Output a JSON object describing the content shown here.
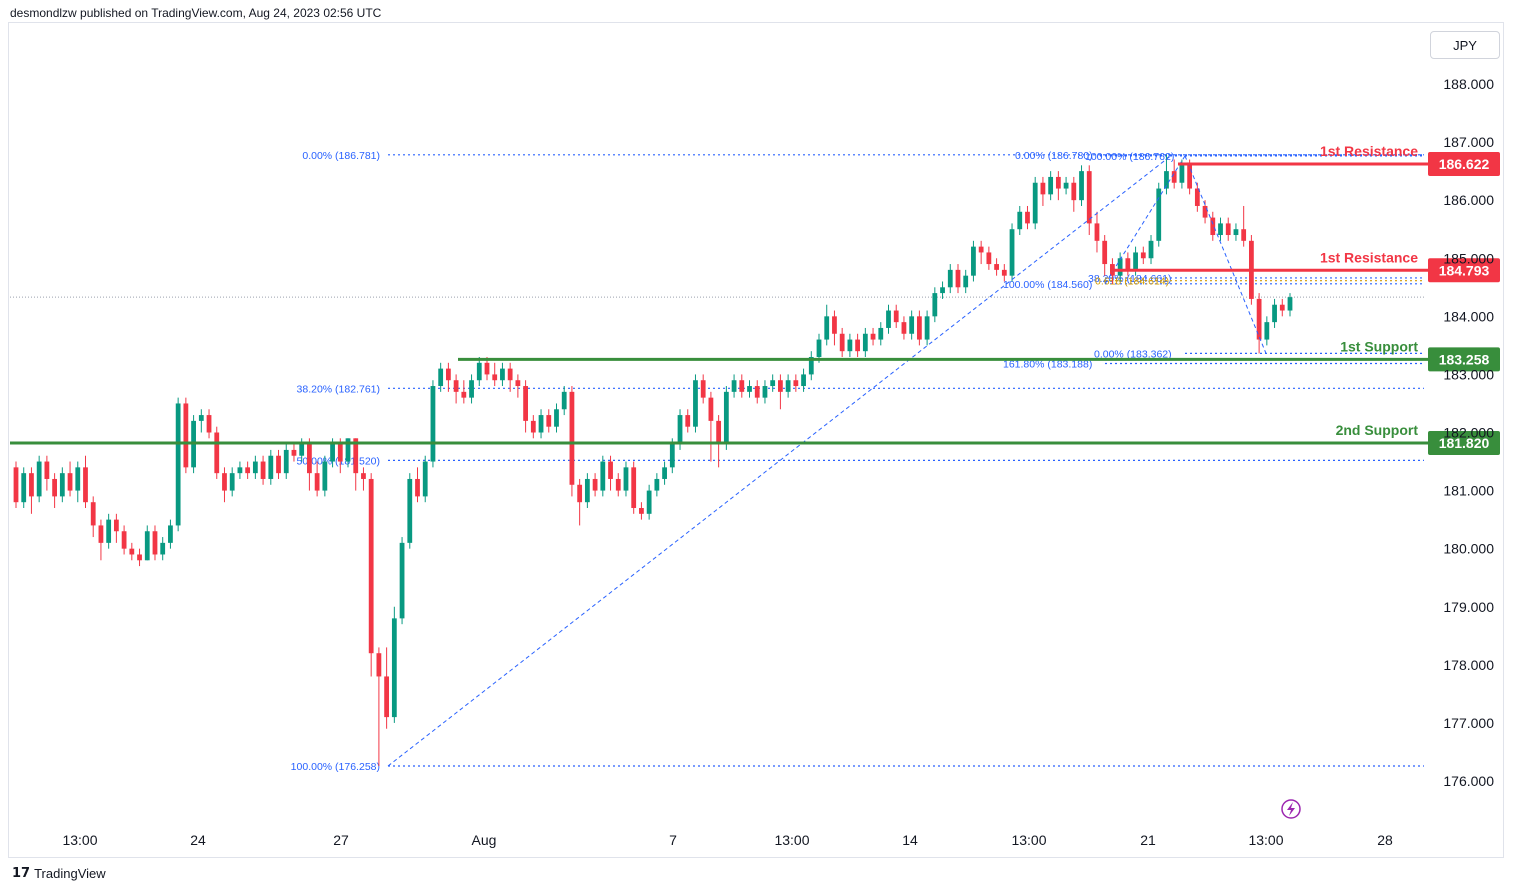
{
  "header": {
    "publisher_line": "desmondlzw published on TradingView.com, Aug 24, 2023 02:56 UTC"
  },
  "currency": "JPY",
  "footer": {
    "brand": "TradingView"
  },
  "colors": {
    "up": "#089981",
    "down": "#f23645",
    "fib": "#2962ff",
    "resistance": "#f23645",
    "support": "#388e3c",
    "gold": "#d49c00"
  },
  "chart_data": {
    "type": "candlestick",
    "y_axis": {
      "ticks": [
        "188.000",
        "187.000",
        "186.000",
        "185.000",
        "184.000",
        "183.000",
        "182.000",
        "181.000",
        "180.000",
        "179.000",
        "178.000",
        "177.000",
        "176.000"
      ]
    },
    "x_axis": {
      "ticks": [
        "13:00",
        "24",
        "27",
        "Aug",
        "7",
        "13:00",
        "14",
        "13:00",
        "21",
        "13:00",
        "28"
      ]
    },
    "levels": [
      {
        "name": "1st Resistance",
        "value": "186.622",
        "kind": "resistance"
      },
      {
        "name": "1st Resistance",
        "value": "184.793",
        "kind": "resistance"
      },
      {
        "name": "1st Support",
        "value": "183.258",
        "kind": "support"
      },
      {
        "name": "2nd Support",
        "value": "181.820",
        "kind": "support"
      }
    ],
    "fib_labels": [
      {
        "text": "0.00% (186.781)",
        "value": 186.781
      },
      {
        "text": "38.20% (182.761)",
        "value": 182.761
      },
      {
        "text": "50.00% (181.520)",
        "value": 181.52
      },
      {
        "text": "100.00% (176.258)",
        "value": 176.258
      },
      {
        "text": "0.00% (186.780)",
        "value": 186.78
      },
      {
        "text": "100.00% (186.762)",
        "value": 186.762
      },
      {
        "text": "38.20% (184.661)",
        "value": 184.661
      },
      {
        "text": "100.00% (184.560)",
        "value": 184.56
      },
      {
        "text": "0.618 (184.614)",
        "value": 184.614
      },
      {
        "text": "0.00% (183.362)",
        "value": 183.362
      },
      {
        "text": "161.80% (183.188)",
        "value": 183.188
      }
    ],
    "current_price": 184.33,
    "candles": [
      [
        181.4,
        180.8,
        181.5,
        180.7
      ],
      [
        180.8,
        181.3,
        181.4,
        180.7
      ],
      [
        181.3,
        180.9,
        181.4,
        180.6
      ],
      [
        180.9,
        181.5,
        181.6,
        180.8
      ],
      [
        181.5,
        181.2,
        181.6,
        181.0
      ],
      [
        181.2,
        180.9,
        181.3,
        180.7
      ],
      [
        180.9,
        181.3,
        181.4,
        180.8
      ],
      [
        181.3,
        181.0,
        181.5,
        180.9
      ],
      [
        181.0,
        181.4,
        181.5,
        180.8
      ],
      [
        181.4,
        180.8,
        181.6,
        180.7
      ],
      [
        180.8,
        180.4,
        180.9,
        180.2
      ],
      [
        180.4,
        180.1,
        180.5,
        179.8
      ],
      [
        180.1,
        180.5,
        180.6,
        180.0
      ],
      [
        180.5,
        180.3,
        180.6,
        180.1
      ],
      [
        180.3,
        180.0,
        180.4,
        179.9
      ],
      [
        180.0,
        179.9,
        180.1,
        179.8
      ],
      [
        179.9,
        179.8,
        180.0,
        179.7
      ],
      [
        179.8,
        180.3,
        180.4,
        179.8
      ],
      [
        180.3,
        179.9,
        180.4,
        179.8
      ],
      [
        179.9,
        180.1,
        180.2,
        179.8
      ],
      [
        180.1,
        180.4,
        180.5,
        180.0
      ],
      [
        180.4,
        182.5,
        182.6,
        180.3
      ],
      [
        182.5,
        181.4,
        182.6,
        181.3
      ],
      [
        181.4,
        182.2,
        182.3,
        181.3
      ],
      [
        182.2,
        182.3,
        182.4,
        182.0
      ],
      [
        182.3,
        182.0,
        182.4,
        181.9
      ],
      [
        182.0,
        181.3,
        182.1,
        181.2
      ],
      [
        181.3,
        181.0,
        181.4,
        180.8
      ],
      [
        181.0,
        181.3,
        181.4,
        180.9
      ],
      [
        181.3,
        181.4,
        181.5,
        181.2
      ],
      [
        181.4,
        181.3,
        181.5,
        181.2
      ],
      [
        181.3,
        181.5,
        181.6,
        181.2
      ],
      [
        181.5,
        181.2,
        181.6,
        181.1
      ],
      [
        181.2,
        181.6,
        181.7,
        181.1
      ],
      [
        181.6,
        181.3,
        181.7,
        181.2
      ],
      [
        181.3,
        181.7,
        181.8,
        181.2
      ],
      [
        181.7,
        181.6,
        181.8,
        181.5
      ],
      [
        181.6,
        181.8,
        181.9,
        181.5
      ],
      [
        181.8,
        181.3,
        181.9,
        181.0
      ],
      [
        181.3,
        181.0,
        181.5,
        180.9
      ],
      [
        181.0,
        181.5,
        181.6,
        180.9
      ],
      [
        181.5,
        181.8,
        181.9,
        181.4
      ],
      [
        181.8,
        181.5,
        181.9,
        181.3
      ],
      [
        181.5,
        181.9,
        181.9,
        181.4
      ],
      [
        181.9,
        181.3,
        181.9,
        181.0
      ],
      [
        181.3,
        181.2,
        181.4,
        181.0
      ],
      [
        181.2,
        178.2,
        181.3,
        177.8
      ],
      [
        178.2,
        177.8,
        178.3,
        176.258
      ],
      [
        177.8,
        177.1,
        178.3,
        176.9
      ],
      [
        177.1,
        178.8,
        179.0,
        177.0
      ],
      [
        178.8,
        180.1,
        180.2,
        178.7
      ],
      [
        180.1,
        181.2,
        181.3,
        180.0
      ],
      [
        181.2,
        180.9,
        181.4,
        180.8
      ],
      [
        180.9,
        181.5,
        181.6,
        180.8
      ],
      [
        181.5,
        182.8,
        182.9,
        181.4
      ],
      [
        182.8,
        183.1,
        183.2,
        182.7
      ],
      [
        183.1,
        182.9,
        183.2,
        182.7
      ],
      [
        182.9,
        182.7,
        183.0,
        182.5
      ],
      [
        182.7,
        182.6,
        182.9,
        182.5
      ],
      [
        182.6,
        182.9,
        183.0,
        182.5
      ],
      [
        182.9,
        183.2,
        183.3,
        182.8
      ],
      [
        183.2,
        183.0,
        183.3,
        182.9
      ],
      [
        183.0,
        182.9,
        183.2,
        182.8
      ],
      [
        182.9,
        183.1,
        183.2,
        182.8
      ],
      [
        183.1,
        182.9,
        183.2,
        182.7
      ],
      [
        182.9,
        182.8,
        183.0,
        182.6
      ],
      [
        182.8,
        182.2,
        182.9,
        182.0
      ],
      [
        182.2,
        182.0,
        182.3,
        181.9
      ],
      [
        182.0,
        182.3,
        182.4,
        181.9
      ],
      [
        182.3,
        182.1,
        182.4,
        182.0
      ],
      [
        182.1,
        182.4,
        182.5,
        182.0
      ],
      [
        182.4,
        182.7,
        182.8,
        182.3
      ],
      [
        182.7,
        181.1,
        182.8,
        180.9
      ],
      [
        181.1,
        180.8,
        181.2,
        180.4
      ],
      [
        180.8,
        181.2,
        181.3,
        180.7
      ],
      [
        181.2,
        181.0,
        181.3,
        180.9
      ],
      [
        181.0,
        181.5,
        181.6,
        180.9
      ],
      [
        181.5,
        181.2,
        181.6,
        181.0
      ],
      [
        181.2,
        181.0,
        181.3,
        180.9
      ],
      [
        181.0,
        181.4,
        181.5,
        180.9
      ],
      [
        181.4,
        180.7,
        181.5,
        180.6
      ],
      [
        180.7,
        180.6,
        180.8,
        180.5
      ],
      [
        180.6,
        181.0,
        181.1,
        180.5
      ],
      [
        181.0,
        181.2,
        181.3,
        180.9
      ],
      [
        181.2,
        181.4,
        181.5,
        181.1
      ],
      [
        181.4,
        181.8,
        181.9,
        181.3
      ],
      [
        181.8,
        182.3,
        182.4,
        181.7
      ],
      [
        182.3,
        182.1,
        182.4,
        182.0
      ],
      [
        182.1,
        182.9,
        183.0,
        182.0
      ],
      [
        182.9,
        182.6,
        183.0,
        182.5
      ],
      [
        182.6,
        182.2,
        182.7,
        181.5
      ],
      [
        182.2,
        181.8,
        182.3,
        181.4
      ],
      [
        181.8,
        182.7,
        182.8,
        181.7
      ],
      [
        182.7,
        182.9,
        183.0,
        182.6
      ],
      [
        182.9,
        182.7,
        183.0,
        182.6
      ],
      [
        182.7,
        182.8,
        182.9,
        182.6
      ],
      [
        182.8,
        182.6,
        182.9,
        182.5
      ],
      [
        182.6,
        182.8,
        182.9,
        182.5
      ],
      [
        182.8,
        182.9,
        183.0,
        182.7
      ],
      [
        182.9,
        182.7,
        183.0,
        182.4
      ],
      [
        182.7,
        182.9,
        183.0,
        182.6
      ],
      [
        182.9,
        182.8,
        183.0,
        182.7
      ],
      [
        182.8,
        183.0,
        183.1,
        182.7
      ],
      [
        183.0,
        183.3,
        183.4,
        182.9
      ],
      [
        183.3,
        183.6,
        183.7,
        183.2
      ],
      [
        183.6,
        184.0,
        184.2,
        183.5
      ],
      [
        184.0,
        183.7,
        184.1,
        183.5
      ],
      [
        183.7,
        183.4,
        183.8,
        183.3
      ],
      [
        183.4,
        183.6,
        183.7,
        183.3
      ],
      [
        183.6,
        183.4,
        183.7,
        183.3
      ],
      [
        183.4,
        183.7,
        183.8,
        183.3
      ],
      [
        183.7,
        183.6,
        183.8,
        183.5
      ],
      [
        183.6,
        183.8,
        183.9,
        183.5
      ],
      [
        183.8,
        184.1,
        184.2,
        183.7
      ],
      [
        184.1,
        183.9,
        184.2,
        183.8
      ],
      [
        183.9,
        183.7,
        184.0,
        183.6
      ],
      [
        183.7,
        184.0,
        184.1,
        183.6
      ],
      [
        184.0,
        183.6,
        184.1,
        183.5
      ],
      [
        183.6,
        184.0,
        184.1,
        183.5
      ],
      [
        184.0,
        184.4,
        184.5,
        183.9
      ],
      [
        184.4,
        184.5,
        184.6,
        184.3
      ],
      [
        184.5,
        184.8,
        184.9,
        184.4
      ],
      [
        184.8,
        184.5,
        184.9,
        184.4
      ],
      [
        184.5,
        184.7,
        184.8,
        184.4
      ],
      [
        184.7,
        185.2,
        185.3,
        184.6
      ],
      [
        185.2,
        185.1,
        185.3,
        184.9
      ],
      [
        185.1,
        184.9,
        185.2,
        184.8
      ],
      [
        184.9,
        184.8,
        185.0,
        184.7
      ],
      [
        184.8,
        184.7,
        184.9,
        184.6
      ],
      [
        184.7,
        185.5,
        185.6,
        184.6
      ],
      [
        185.5,
        185.8,
        185.9,
        185.4
      ],
      [
        185.8,
        185.6,
        185.9,
        185.5
      ],
      [
        185.6,
        186.3,
        186.4,
        185.5
      ],
      [
        186.3,
        186.1,
        186.4,
        185.9
      ],
      [
        186.1,
        186.4,
        186.5,
        186.0
      ],
      [
        186.4,
        186.2,
        186.5,
        186.0
      ],
      [
        186.2,
        186.3,
        186.4,
        186.1
      ],
      [
        186.3,
        186.0,
        186.4,
        185.8
      ],
      [
        186.0,
        186.5,
        186.6,
        185.9
      ],
      [
        186.5,
        185.6,
        186.6,
        185.4
      ],
      [
        185.6,
        185.3,
        185.8,
        185.1
      ],
      [
        185.3,
        184.9,
        185.4,
        184.7
      ],
      [
        184.9,
        184.7,
        185.0,
        184.56
      ],
      [
        184.7,
        185.0,
        185.1,
        184.6
      ],
      [
        185.0,
        184.8,
        185.1,
        184.7
      ],
      [
        184.8,
        185.1,
        185.2,
        184.7
      ],
      [
        185.1,
        185.0,
        185.2,
        184.9
      ],
      [
        185.0,
        185.3,
        185.4,
        184.9
      ],
      [
        185.3,
        186.2,
        186.3,
        185.2
      ],
      [
        186.2,
        186.5,
        186.78,
        186.1
      ],
      [
        186.5,
        186.3,
        186.7,
        186.2
      ],
      [
        186.3,
        186.6,
        186.7,
        186.2
      ],
      [
        186.6,
        186.2,
        186.7,
        186.1
      ],
      [
        186.2,
        185.9,
        186.3,
        185.8
      ],
      [
        185.9,
        185.7,
        186.0,
        185.6
      ],
      [
        185.7,
        185.4,
        185.8,
        185.3
      ],
      [
        185.4,
        185.6,
        185.7,
        185.3
      ],
      [
        185.6,
        185.4,
        185.7,
        185.3
      ],
      [
        185.4,
        185.5,
        185.6,
        185.3
      ],
      [
        185.5,
        185.3,
        185.9,
        185.2
      ],
      [
        185.3,
        184.3,
        185.4,
        184.2
      ],
      [
        184.3,
        183.6,
        184.4,
        183.362
      ],
      [
        183.6,
        183.9,
        184.0,
        183.5
      ],
      [
        183.9,
        184.2,
        184.3,
        183.8
      ],
      [
        184.2,
        184.1,
        184.3,
        184.0
      ],
      [
        184.1,
        184.33,
        184.4,
        184.0
      ]
    ]
  }
}
